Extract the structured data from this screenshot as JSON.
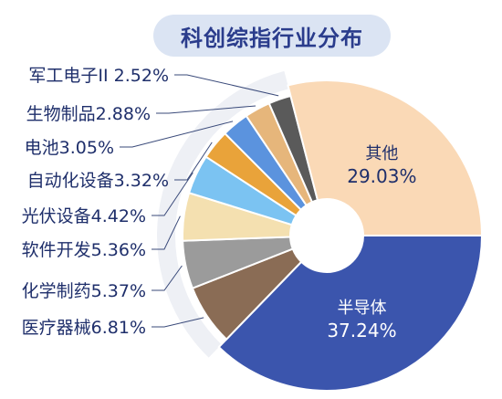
{
  "chart_data": {
    "type": "pie",
    "title": "科创综指行业分布",
    "slices": [
      {
        "name": "半导体",
        "value": 37.24,
        "label": "37.24%",
        "color": "#3b55ad"
      },
      {
        "name": "医疗器械",
        "value": 6.81,
        "label": "6.81%",
        "color": "#8a6c55"
      },
      {
        "name": "化学制药",
        "value": 5.37,
        "label": "5.37%",
        "color": "#9b9b9b"
      },
      {
        "name": "软件开发",
        "value": 5.36,
        "label": "5.36%",
        "color": "#f4e0b0"
      },
      {
        "name": "光伏设备",
        "value": 4.42,
        "label": "4.42%",
        "color": "#7bc3f2"
      },
      {
        "name": "自动化设备",
        "value": 3.32,
        "label": "3.32%",
        "color": "#e9a33a"
      },
      {
        "name": "电池",
        "value": 3.05,
        "label": "3.05%",
        "color": "#5b93de"
      },
      {
        "name": "生物制品",
        "value": 2.88,
        "label": "2.88%",
        "color": "#e6b67b"
      },
      {
        "name": "军工电子II",
        "value": 2.52,
        "label": "2.52%",
        "color": "#5a5a5a"
      },
      {
        "name": "其他",
        "value": 29.03,
        "label": "29.03%",
        "color": "#fad9b6"
      }
    ],
    "colors": {
      "title_bg": "#dbe4f3",
      "title_text": "#2a3c8c",
      "label_text": "#1f2f6b",
      "leader": "#3a4a7a"
    }
  }
}
